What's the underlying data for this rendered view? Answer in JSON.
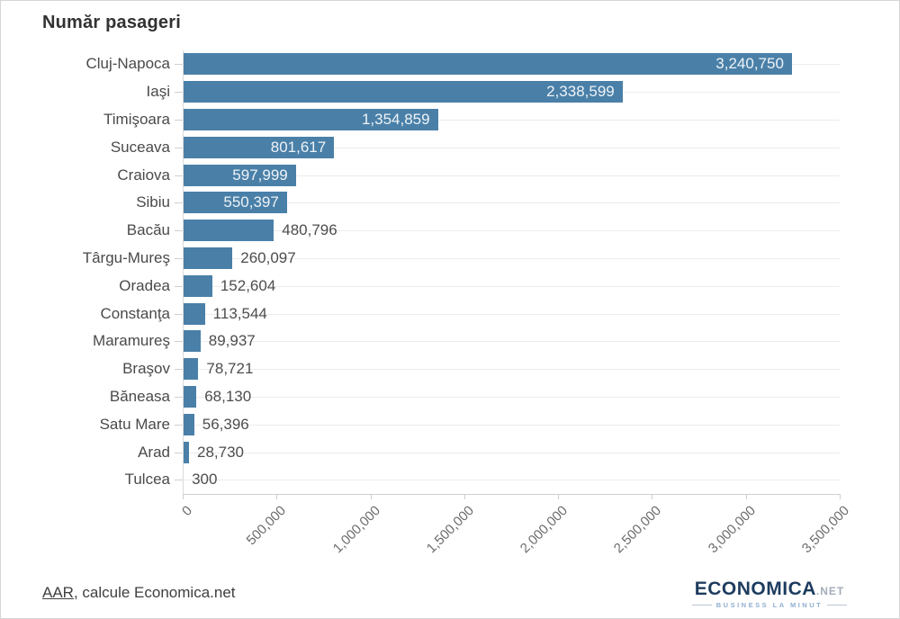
{
  "chart_data": {
    "type": "bar",
    "orientation": "horizontal",
    "title": "Număr pasageri",
    "categories": [
      "Cluj-Napoca",
      "Iaşi",
      "Timişoara",
      "Suceava",
      "Craiova",
      "Sibiu",
      "Bacău",
      "Târgu-Mureş",
      "Oradea",
      "Constanţa",
      "Maramureş",
      "Braşov",
      "Băneasa",
      "Satu Mare",
      "Arad",
      "Tulcea"
    ],
    "values": [
      3240750,
      2338599,
      1354859,
      801617,
      597999,
      550397,
      480796,
      260097,
      152604,
      113544,
      89937,
      78721,
      68130,
      56396,
      28730,
      300
    ],
    "value_labels": [
      "3,240,750",
      "2,338,599",
      "1,354,859",
      "801,617",
      "597,999",
      "550,397",
      "480,796",
      "260,097",
      "152,604",
      "113,544",
      "89,937",
      "78,721",
      "68,130",
      "56,396",
      "28,730",
      "300"
    ],
    "xlabel": "",
    "ylabel": "",
    "xlim": [
      0,
      3500000
    ],
    "x_ticks": [
      0,
      500000,
      1000000,
      1500000,
      2000000,
      2500000,
      3000000,
      3500000
    ],
    "x_tick_labels": [
      "0",
      "500,000",
      "1,000,000",
      "1,500,000",
      "2,000,000",
      "2,500,000",
      "3,000,000",
      "3,500,000"
    ],
    "grid": "horizontal row lines, no vertical gridlines",
    "legend": "none",
    "bar_color": "#4a80a8",
    "inside_label_color": "#eef3f7",
    "outside_label_color": "#4d4d4d",
    "labels_inside_threshold": 500000
  },
  "footer": {
    "link_text": "AAR",
    "rest_text": ", calcule Economica.net"
  },
  "logo": {
    "brand": "ECONOMICA",
    "tld": ".NET",
    "tagline": "BUSINESS LA MINUT",
    "brand_color": "#1d3c5e",
    "tld_color": "#a3adba",
    "tagline_color": "#8fafd0"
  }
}
